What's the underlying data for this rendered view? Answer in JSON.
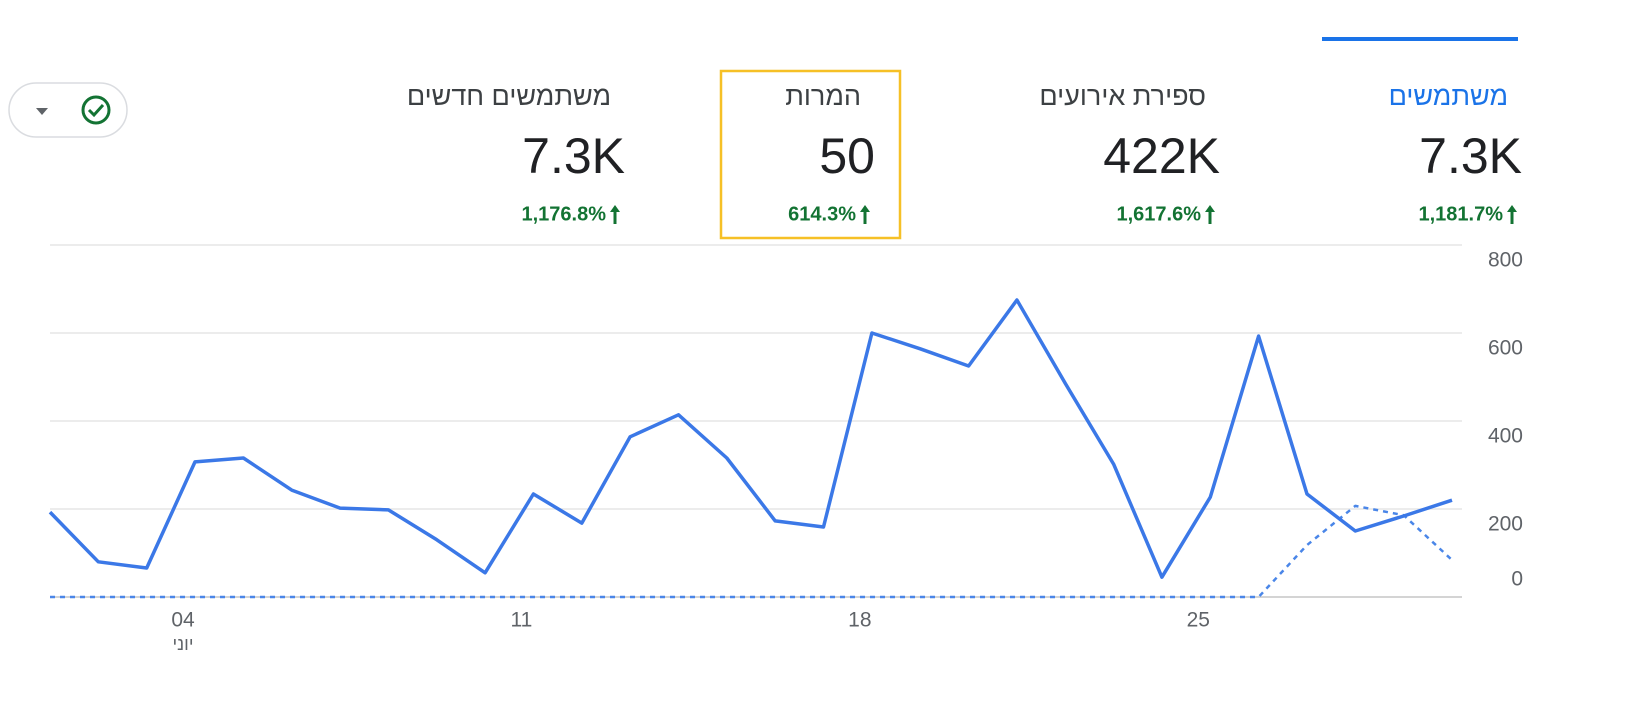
{
  "metrics": [
    {
      "title": "משתמשים",
      "value": "7.3K",
      "change": "1,181.7%"
    },
    {
      "title": "ספירת אירועים",
      "value": "422K",
      "change": "1,617.6%"
    },
    {
      "title": "המרות",
      "value": "50",
      "change": "614.3%"
    },
    {
      "title": "משתמשים חדשים",
      "value": "7.3K",
      "change": "1,176.8%"
    }
  ],
  "selected_metric": 0,
  "highlighted_metric": 2,
  "chart_data": {
    "type": "line",
    "categories": [
      null,
      null,
      null,
      "04",
      null,
      null,
      null,
      null,
      null,
      null,
      "11",
      null,
      null,
      null,
      null,
      null,
      null,
      "18",
      null,
      null,
      null,
      null,
      null,
      null,
      "25",
      null,
      null,
      null,
      null,
      null
    ],
    "month_label": "יוני",
    "series": [
      {
        "color": "#3b78e7",
        "dashed": false,
        "values": [
          193,
          80,
          66,
          307,
          316,
          243,
          202,
          198,
          130,
          55,
          234,
          168,
          364,
          414,
          316,
          173,
          159,
          600,
          564,
          525,
          675,
          486,
          302,
          45,
          227,
          593,
          234,
          150,
          184,
          220
        ]
      },
      {
        "color": "#4a86e8",
        "dashed": true,
        "values": [
          0,
          0,
          0,
          0,
          0,
          0,
          0,
          0,
          0,
          0,
          0,
          0,
          0,
          0,
          0,
          0,
          0,
          0,
          0,
          0,
          0,
          0,
          0,
          0,
          0,
          0,
          118,
          207,
          186,
          84
        ]
      }
    ],
    "ylim": [
      0,
      800
    ],
    "yticks": [
      0,
      200,
      400,
      600,
      800
    ],
    "grid": true
  }
}
